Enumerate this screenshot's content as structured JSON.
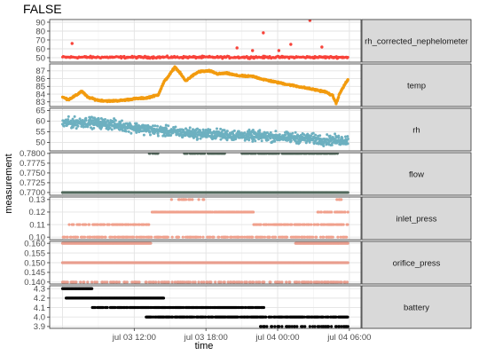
{
  "chart_data": {
    "type": "scatter",
    "title": "FALSE",
    "xlabel": "time",
    "ylabel": "measurement",
    "x_ticks": [
      "jul 03 12:00",
      "jul 03 18:00",
      "jul 04 00:00",
      "jul 04 06:00"
    ],
    "x_range_hours": [
      6.0,
      29.9
    ],
    "x_tick_hours": [
      12,
      18,
      24,
      30
    ],
    "grid": true,
    "legend": "none",
    "panels": [
      {
        "name": "rh_corrected_nephelometer",
        "color": "#f8433a",
        "ylim": [
          45,
          93
        ],
        "yticks": [
          50,
          60,
          70,
          80,
          90
        ],
        "series": {
          "kind": "noise",
          "base": 50.5,
          "amp": 1.8,
          "outliers": [
            [
              6.8,
              66
            ],
            [
              20.6,
              61
            ],
            [
              21.9,
              58
            ],
            [
              22.8,
              78
            ],
            [
              24.1,
              58
            ],
            [
              25.1,
              65
            ],
            [
              26.7,
              92
            ],
            [
              27.7,
              62
            ]
          ]
        }
      },
      {
        "name": "temp",
        "color": "#f29b0f",
        "ylim": [
          82.4,
          87.9
        ],
        "yticks": [
          83,
          84,
          85,
          86,
          87
        ],
        "series": {
          "kind": "curve",
          "points": [
            [
              6,
              83.6
            ],
            [
              6.5,
              83.3
            ],
            [
              7.2,
              83.9
            ],
            [
              7.6,
              84.4
            ],
            [
              8.1,
              83.6
            ],
            [
              9,
              83.2
            ],
            [
              10,
              83.1
            ],
            [
              11,
              83.2
            ],
            [
              12,
              83.4
            ],
            [
              13,
              83.5
            ],
            [
              14,
              83.9
            ],
            [
              14.5,
              85.6
            ],
            [
              15,
              86.6
            ],
            [
              15.4,
              87.5
            ],
            [
              15.8,
              86.8
            ],
            [
              16.3,
              85.7
            ],
            [
              16.8,
              86.3
            ],
            [
              17.4,
              86.9
            ],
            [
              18.3,
              87.0
            ],
            [
              19,
              86.6
            ],
            [
              19.7,
              86.7
            ],
            [
              20.6,
              86.4
            ],
            [
              21.4,
              86.3
            ],
            [
              21.9,
              86.3
            ],
            [
              22.8,
              85.9
            ],
            [
              24,
              85.5
            ],
            [
              25,
              85.2
            ],
            [
              26,
              84.9
            ],
            [
              27,
              84.6
            ],
            [
              28,
              84.3
            ],
            [
              28.6,
              83.8
            ],
            [
              28.9,
              82.8
            ],
            [
              29.2,
              84.1
            ],
            [
              29.6,
              85.2
            ],
            [
              29.9,
              85.9
            ]
          ],
          "jitter": 0.3
        }
      },
      {
        "name": "rh",
        "color": "#6db0c0",
        "ylim": [
          46,
          66
        ],
        "yticks": [
          45,
          50,
          55,
          60,
          65
        ],
        "series": {
          "kind": "trend",
          "points": [
            [
              6,
              59
            ],
            [
              8,
              59.5
            ],
            [
              10,
              58.5
            ],
            [
              12,
              57
            ],
            [
              14,
              55.5
            ],
            [
              16,
              54.5
            ],
            [
              18,
              54
            ],
            [
              20,
              53.5
            ],
            [
              22,
              53
            ],
            [
              24,
              52.5
            ],
            [
              26,
              52
            ],
            [
              28,
              51
            ],
            [
              29.9,
              51
            ]
          ],
          "amp": 3.5
        }
      },
      {
        "name": "flow",
        "color": "#52695c",
        "ylim": [
          0.7693,
          0.7802
        ],
        "yticks": [
          0.77,
          0.7725,
          0.775,
          0.7775,
          0.78
        ],
        "tick_labels": [
          "0.7700",
          "0.7725",
          "0.7750",
          "0.7775",
          "0.7800"
        ],
        "series": {
          "kind": "levels",
          "bands": [
            [
              0.77,
              6.0,
              29.9,
              1
            ],
            [
              0.78,
              13.2,
              14.0,
              0.5
            ],
            [
              0.78,
              16.2,
              19.6,
              0.5
            ],
            [
              0.78,
              20.9,
              29.0,
              0.7
            ]
          ]
        }
      },
      {
        "name": "inlet_press",
        "color": "#f0a08c",
        "ylim": [
          0.098,
          0.132
        ],
        "yticks": [
          0.1,
          0.11,
          0.12,
          0.13
        ],
        "tick_labels": [
          "0.10",
          "0.11",
          "0.12",
          "0.13"
        ],
        "series": {
          "kind": "levels",
          "bands": [
            [
              0.1,
              6.0,
              29.9,
              0.5
            ],
            [
              0.11,
              6.5,
              13.5,
              0.6
            ],
            [
              0.11,
              22.0,
              29.9,
              0.6
            ],
            [
              0.12,
              13.5,
              22.0,
              0.9
            ],
            [
              0.12,
              27.3,
              29.9,
              0.5
            ],
            [
              0.13,
              15.0,
              18.0,
              0.4
            ],
            [
              0.13,
              28.9,
              29.6,
              0.4
            ]
          ]
        }
      },
      {
        "name": "orifice_press",
        "color": "#e99e8e",
        "ylim": [
          0.139,
          0.161
        ],
        "yticks": [
          0.14,
          0.145,
          0.15,
          0.155,
          0.16
        ],
        "tick_labels": [
          "0.140",
          "0.145",
          "0.150",
          "0.155",
          "0.160"
        ],
        "series": {
          "kind": "levels",
          "bands": [
            [
              0.16,
              6.0,
              13.4,
              1
            ],
            [
              0.16,
              25.5,
              29.9,
              1
            ],
            [
              0.15,
              6.0,
              29.9,
              1
            ],
            [
              0.14,
              6.0,
              29.9,
              0.4
            ]
          ]
        }
      },
      {
        "name": "battery",
        "color": "#000000",
        "ylim": [
          3.88,
          4.33
        ],
        "yticks": [
          3.9,
          4.0,
          4.1,
          4.2,
          4.3
        ],
        "tick_labels": [
          "3.9",
          "4.0",
          "4.1",
          "4.2",
          "4.3"
        ],
        "series": {
          "kind": "levels",
          "bands": [
            [
              4.3,
              6.0,
              8.5,
              1
            ],
            [
              4.2,
              6.3,
              14.5,
              1
            ],
            [
              4.1,
              8.5,
              23.0,
              0.8
            ],
            [
              4.0,
              13.0,
              29.9,
              0.8
            ],
            [
              3.9,
              22.5,
              29.9,
              0.4
            ]
          ]
        }
      }
    ]
  }
}
